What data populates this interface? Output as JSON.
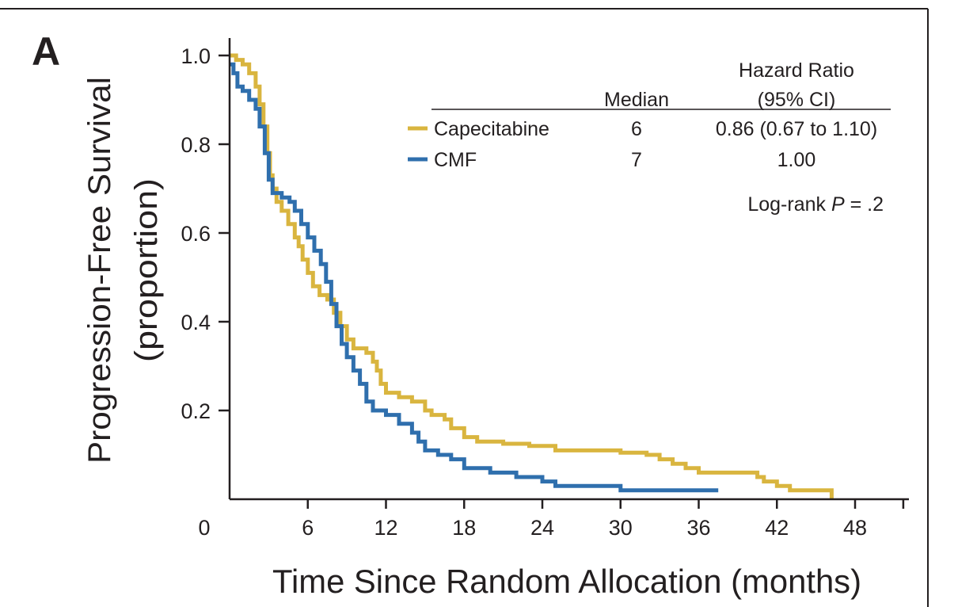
{
  "panel_label": "A",
  "chart_data": {
    "type": "line",
    "step": true,
    "xlabel": "Time Since Random Allocation (months)",
    "ylabel_lines": [
      "Progression-Free Survival",
      "(proportion)"
    ],
    "xlim": [
      0,
      52
    ],
    "ylim": [
      0,
      1.0
    ],
    "x_ticks": [
      "0",
      "6",
      "12",
      "18",
      "24",
      "30",
      "36",
      "42",
      "48"
    ],
    "x_tick_values": [
      0,
      6,
      12,
      18,
      24,
      30,
      36,
      42,
      48
    ],
    "y_ticks": [
      "0.2",
      "0.4",
      "0.6",
      "0.8",
      "1.0"
    ],
    "y_tick_values": [
      0.2,
      0.4,
      0.6,
      0.8,
      1.0
    ],
    "colors": {
      "Capecitabine": "#d9b53f",
      "CMF": "#2f6fad",
      "axis": "#231f20"
    },
    "table": {
      "header_hazard_line1": "Hazard Ratio",
      "header_median": "Median",
      "header_hazard_line2": "(95% CI)",
      "rows": [
        {
          "name": "Capecitabine",
          "median": "6",
          "hazard": "0.86 (0.67 to 1.10)"
        },
        {
          "name": "CMF",
          "median": "7",
          "hazard": "1.00"
        }
      ]
    },
    "annotation_prefix": "Log-rank ",
    "annotation_p": "P",
    "annotation_suffix": " = .2",
    "series": [
      {
        "name": "Capecitabine",
        "points": [
          [
            0,
            1.0
          ],
          [
            0.5,
            0.99
          ],
          [
            1.0,
            0.98
          ],
          [
            1.5,
            0.96
          ],
          [
            2.0,
            0.93
          ],
          [
            2.3,
            0.89
          ],
          [
            2.6,
            0.84
          ],
          [
            2.9,
            0.78
          ],
          [
            3.1,
            0.73
          ],
          [
            3.3,
            0.7
          ],
          [
            3.6,
            0.67
          ],
          [
            4.0,
            0.65
          ],
          [
            4.5,
            0.62
          ],
          [
            5.0,
            0.59
          ],
          [
            5.3,
            0.57
          ],
          [
            5.6,
            0.54
          ],
          [
            6.0,
            0.51
          ],
          [
            6.4,
            0.48
          ],
          [
            6.9,
            0.46
          ],
          [
            7.5,
            0.45
          ],
          [
            8.0,
            0.42
          ],
          [
            8.5,
            0.39
          ],
          [
            9.0,
            0.36
          ],
          [
            9.5,
            0.34
          ],
          [
            10.5,
            0.33
          ],
          [
            11.0,
            0.31
          ],
          [
            11.3,
            0.29
          ],
          [
            11.6,
            0.26
          ],
          [
            12.0,
            0.24
          ],
          [
            13.0,
            0.23
          ],
          [
            14.0,
            0.22
          ],
          [
            15.0,
            0.2
          ],
          [
            15.5,
            0.19
          ],
          [
            16.5,
            0.18
          ],
          [
            17.0,
            0.16
          ],
          [
            18.0,
            0.14
          ],
          [
            19.0,
            0.13
          ],
          [
            21.0,
            0.125
          ],
          [
            23.0,
            0.12
          ],
          [
            25.0,
            0.11
          ],
          [
            29.0,
            0.11
          ],
          [
            30.0,
            0.105
          ],
          [
            32.0,
            0.1
          ],
          [
            33.0,
            0.09
          ],
          [
            34.0,
            0.08
          ],
          [
            35.0,
            0.07
          ],
          [
            36.0,
            0.06
          ],
          [
            40.0,
            0.06
          ],
          [
            40.5,
            0.05
          ],
          [
            41.0,
            0.04
          ],
          [
            42.0,
            0.03
          ],
          [
            43.0,
            0.02
          ],
          [
            46.0,
            0.02
          ],
          [
            46.2,
            0.0
          ]
        ]
      },
      {
        "name": "CMF",
        "points": [
          [
            0,
            0.98
          ],
          [
            0.3,
            0.96
          ],
          [
            0.6,
            0.93
          ],
          [
            1.0,
            0.92
          ],
          [
            1.5,
            0.9
          ],
          [
            2.0,
            0.88
          ],
          [
            2.3,
            0.84
          ],
          [
            2.7,
            0.78
          ],
          [
            3.0,
            0.72
          ],
          [
            3.3,
            0.69
          ],
          [
            4.0,
            0.68
          ],
          [
            4.6,
            0.67
          ],
          [
            5.0,
            0.65
          ],
          [
            5.5,
            0.62
          ],
          [
            6.0,
            0.59
          ],
          [
            6.5,
            0.56
          ],
          [
            7.0,
            0.53
          ],
          [
            7.4,
            0.49
          ],
          [
            7.8,
            0.44
          ],
          [
            8.2,
            0.39
          ],
          [
            8.6,
            0.35
          ],
          [
            9.0,
            0.32
          ],
          [
            9.5,
            0.29
          ],
          [
            10.0,
            0.26
          ],
          [
            10.5,
            0.22
          ],
          [
            11.0,
            0.2
          ],
          [
            12.0,
            0.19
          ],
          [
            13.0,
            0.17
          ],
          [
            14.0,
            0.15
          ],
          [
            14.5,
            0.13
          ],
          [
            15.0,
            0.11
          ],
          [
            16.0,
            0.1
          ],
          [
            17.0,
            0.09
          ],
          [
            18.0,
            0.07
          ],
          [
            20.0,
            0.06
          ],
          [
            22.0,
            0.05
          ],
          [
            24.0,
            0.04
          ],
          [
            25.0,
            0.03
          ],
          [
            30.0,
            0.02
          ],
          [
            37.5,
            0.02
          ]
        ]
      }
    ]
  }
}
